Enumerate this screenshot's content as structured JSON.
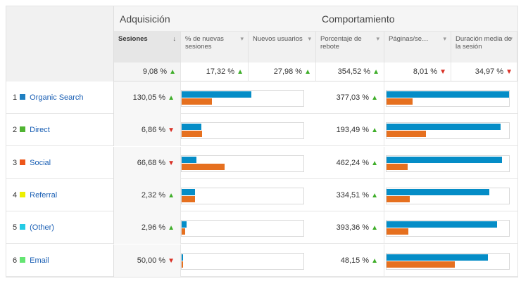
{
  "groups": {
    "acquisition": "Adquisición",
    "behavior": "Comportamiento"
  },
  "columns": [
    {
      "label": "Sesiones",
      "sorted": true,
      "sort_icon": "↓",
      "menu_icon": "",
      "total": "9,08 %",
      "trend": "up"
    },
    {
      "label": "% de nuevas sesiones",
      "sorted": false,
      "sort_icon": "",
      "menu_icon": "▾",
      "total": "17,32 %",
      "trend": "up"
    },
    {
      "label": "Nuevos usuarios",
      "sorted": false,
      "sort_icon": "",
      "menu_icon": "▾",
      "total": "27,98 %",
      "trend": "up"
    },
    {
      "label": "Porcentaje de rebote",
      "sorted": false,
      "sort_icon": "",
      "menu_icon": "▾",
      "total": "354,52 %",
      "trend": "up"
    },
    {
      "label": "Páginas/se…",
      "sorted": false,
      "sort_icon": "",
      "menu_icon": "▾",
      "total": "8,01 %",
      "trend": "down"
    },
    {
      "label": "Duración media de la sesión",
      "sorted": false,
      "sort_icon": "",
      "menu_icon": "▾",
      "total": "34,97 %",
      "trend": "down"
    }
  ],
  "rows": [
    {
      "num": "1",
      "name": "Organic Search",
      "color": "#1f7fc1",
      "sessions": "130,05 %",
      "sessions_trend": "up",
      "sessions_bars": [
        0.57,
        0.25
      ],
      "bounce": "377,03 %",
      "bounce_trend": "up",
      "bounce_bars": [
        1.0,
        0.21
      ]
    },
    {
      "num": "2",
      "name": "Direct",
      "color": "#50b432",
      "sessions": "6,86 %",
      "sessions_trend": "down",
      "sessions_bars": [
        0.16,
        0.17
      ],
      "bounce": "193,49 %",
      "bounce_trend": "up",
      "bounce_bars": [
        0.93,
        0.32
      ]
    },
    {
      "num": "3",
      "name": "Social",
      "color": "#ed561b",
      "sessions": "66,68 %",
      "sessions_trend": "down",
      "sessions_bars": [
        0.12,
        0.35
      ],
      "bounce": "462,24 %",
      "bounce_trend": "up",
      "bounce_bars": [
        0.94,
        0.17
      ]
    },
    {
      "num": "4",
      "name": "Referral",
      "color": "#edef00",
      "sessions": "2,32 %",
      "sessions_trend": "up",
      "sessions_bars": [
        0.11,
        0.11
      ],
      "bounce": "334,51 %",
      "bounce_trend": "up",
      "bounce_bars": [
        0.84,
        0.19
      ]
    },
    {
      "num": "5",
      "name": "(Other)",
      "color": "#24cbe5",
      "sessions": "2,96 %",
      "sessions_trend": "up",
      "sessions_bars": [
        0.04,
        0.03
      ],
      "bounce": "393,36 %",
      "bounce_trend": "up",
      "bounce_bars": [
        0.9,
        0.18
      ]
    },
    {
      "num": "6",
      "name": "Email",
      "color": "#64e572",
      "sessions": "50,00 %",
      "sessions_trend": "down",
      "sessions_bars": [
        0.01,
        0.01
      ],
      "bounce": "48,15 %",
      "bounce_trend": "up",
      "bounce_bars": [
        0.83,
        0.56
      ]
    }
  ],
  "icons": {
    "trend_up": "▲",
    "trend_down": "▼",
    "color_swatch": "square"
  },
  "colors": {
    "bar_blue": "#058dc7",
    "bar_orange": "#e6701f",
    "trend_up": "#3fae2a",
    "trend_down": "#d93025",
    "link": "#1a5fb4"
  }
}
